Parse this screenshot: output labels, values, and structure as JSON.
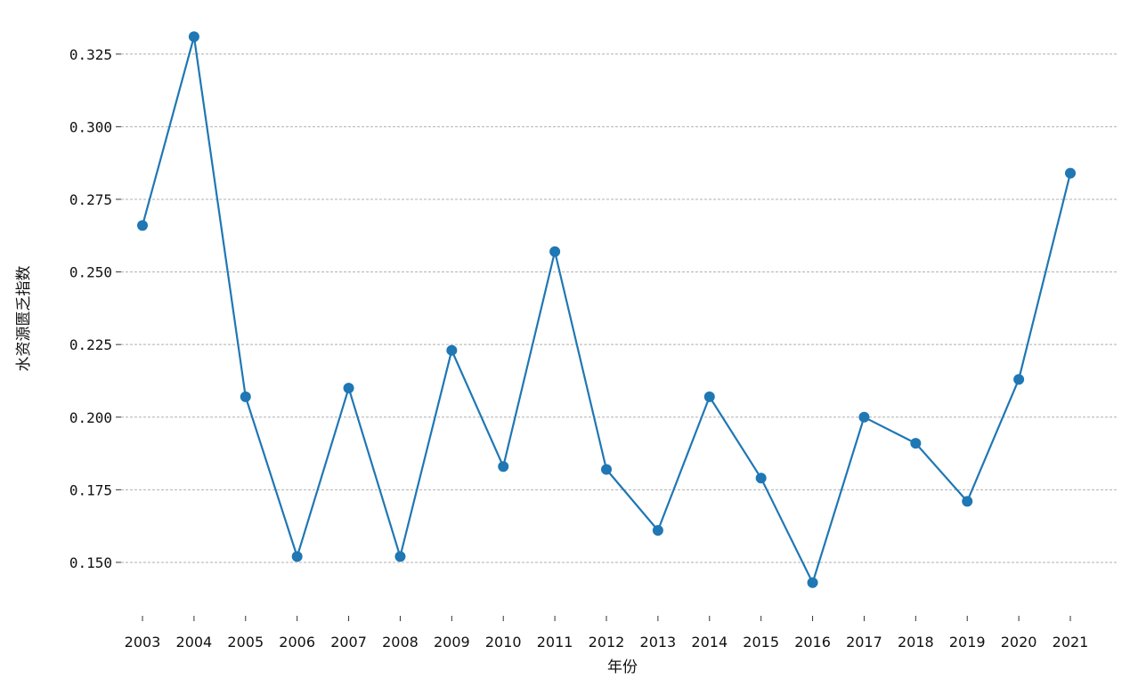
{
  "chart_data": {
    "type": "line",
    "title": "",
    "xlabel": "年份",
    "ylabel": "水资源匮乏指数",
    "x": [
      "2003",
      "2004",
      "2005",
      "2006",
      "2007",
      "2008",
      "2009",
      "2010",
      "2011",
      "2012",
      "2013",
      "2014",
      "2015",
      "2016",
      "2017",
      "2018",
      "2019",
      "2020",
      "2021"
    ],
    "series": [
      {
        "values": [
          0.266,
          0.331,
          0.207,
          0.152,
          0.21,
          0.152,
          0.223,
          0.183,
          0.257,
          0.182,
          0.161,
          0.207,
          0.179,
          0.143,
          0.2,
          0.191,
          0.171,
          0.213,
          0.284
        ],
        "color": "#1f77b4",
        "marker": "circle"
      }
    ],
    "yticks": [
      "0.150",
      "0.175",
      "0.200",
      "0.225",
      "0.250",
      "0.275",
      "0.300",
      "0.325"
    ],
    "ylim": [
      0.1365,
      0.3375
    ],
    "grid": "horizontal-dashed",
    "legend": "none"
  }
}
